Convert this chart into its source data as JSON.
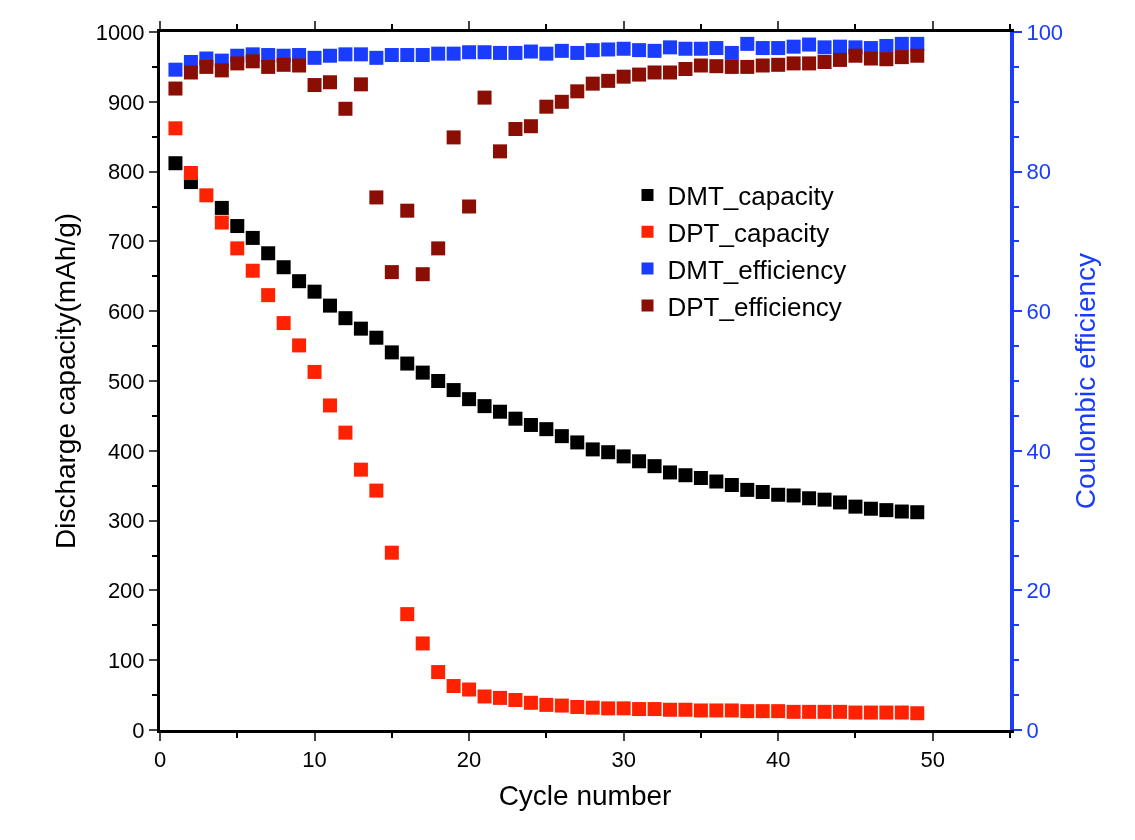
{
  "chart_data": {
    "type": "scatter",
    "xlabel": "Cycle number",
    "ylabel": "Discharge capacity(mAh/g)",
    "y2label": "Coulombic efficiency",
    "x": [
      1,
      2,
      3,
      4,
      5,
      6,
      7,
      8,
      9,
      10,
      11,
      12,
      13,
      14,
      15,
      16,
      17,
      18,
      19,
      20,
      21,
      22,
      23,
      24,
      25,
      26,
      27,
      28,
      29,
      30,
      31,
      32,
      33,
      34,
      35,
      36,
      37,
      38,
      39,
      40,
      41,
      42,
      43,
      44,
      45,
      46,
      47,
      48,
      49
    ],
    "series": [
      {
        "name": "DMT_capacity",
        "color": "#000000",
        "values": [
          812,
          785,
          null,
          748,
          722,
          705,
          683,
          663,
          643,
          628,
          608,
          590,
          575,
          562,
          541,
          525,
          512,
          500,
          487,
          474,
          464,
          456,
          446,
          437,
          431,
          421,
          412,
          402,
          398,
          392,
          385,
          378,
          369,
          365,
          361,
          356,
          351,
          344,
          341,
          337,
          336,
          332,
          330,
          326,
          320,
          317,
          315,
          313,
          312
        ]
      },
      {
        "name": "DPT_capacity",
        "color": "#ff2200",
        "values": [
          862,
          798,
          766,
          727,
          690,
          658,
          623,
          583,
          551,
          513,
          465,
          426,
          373,
          343,
          254,
          166,
          124,
          83,
          63,
          58,
          48,
          46,
          43,
          39,
          36,
          35,
          33,
          32,
          31,
          31,
          30,
          30,
          29,
          29,
          28,
          28,
          28,
          27,
          27,
          27,
          26,
          26,
          26,
          26,
          25,
          25,
          25,
          25,
          24
        ]
      },
      {
        "name": "DMT_efficiency",
        "color": "#1a3cff",
        "axis": "y2",
        "values": [
          94.6,
          95.7,
          96.2,
          95.9,
          96.6,
          96.8,
          96.7,
          96.6,
          96.7,
          96.3,
          96.6,
          96.8,
          96.8,
          96.3,
          96.7,
          96.7,
          96.7,
          96.9,
          96.9,
          97.1,
          97.1,
          97.0,
          97.0,
          97.2,
          96.9,
          97.3,
          97.0,
          97.4,
          97.5,
          97.6,
          97.4,
          97.3,
          97.8,
          97.6,
          97.6,
          97.7,
          97.0,
          98.3,
          97.7,
          97.7,
          97.9,
          98.2,
          97.8,
          97.9,
          97.8,
          97.7,
          98.0,
          98.3,
          98.3
        ]
      },
      {
        "name": "DPT_efficiency",
        "color": "#8b0e04",
        "axis": "y2",
        "values": [
          91.9,
          94.2,
          95.0,
          94.5,
          95.5,
          95.8,
          95.0,
          95.3,
          95.2,
          92.4,
          92.8,
          89.0,
          92.5,
          76.3,
          65.6,
          74.4,
          65.3,
          69.0,
          84.9,
          75.0,
          90.6,
          82.9,
          86.1,
          86.5,
          89.3,
          90.0,
          91.5,
          92.6,
          93.0,
          93.6,
          93.9,
          94.2,
          94.2,
          94.7,
          95.2,
          95.1,
          95.0,
          95.0,
          95.2,
          95.3,
          95.5,
          95.5,
          95.7,
          96.0,
          96.6,
          96.2,
          96.1,
          96.4,
          96.6
        ]
      }
    ],
    "xlim": [
      0,
      55
    ],
    "xticks": [
      0,
      10,
      20,
      30,
      40,
      50
    ],
    "ylim": [
      0,
      1000
    ],
    "yticks": [
      0,
      100,
      200,
      300,
      400,
      500,
      600,
      700,
      800,
      900,
      1000
    ],
    "y2lim": [
      0,
      100
    ],
    "y2ticks": [
      0,
      20,
      40,
      60,
      80,
      100
    ],
    "marker": "square",
    "grid": false,
    "legend": "top right"
  }
}
